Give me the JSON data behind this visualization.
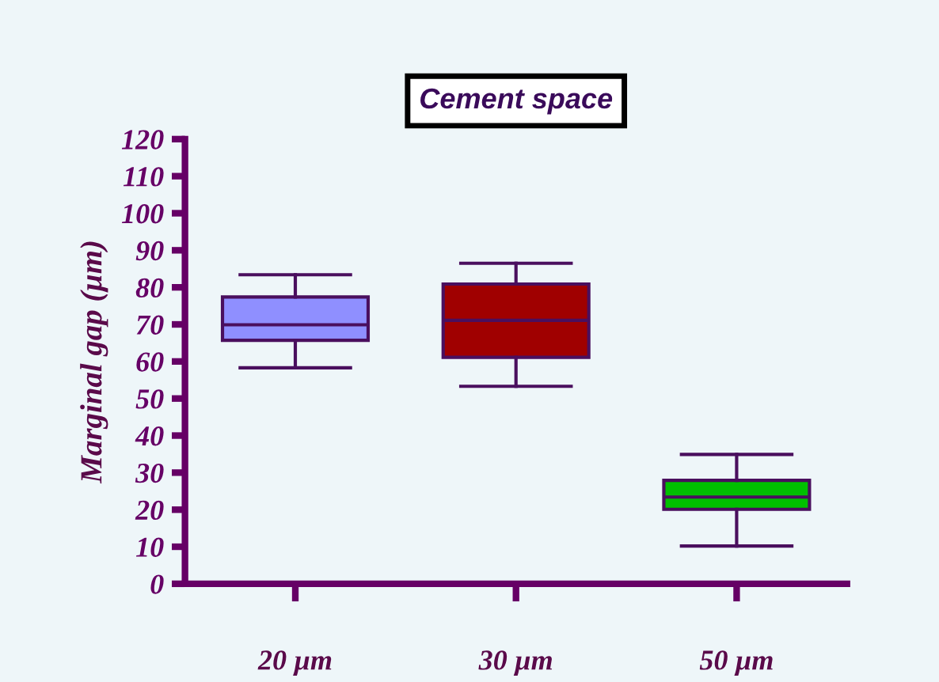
{
  "chart_data": {
    "type": "box",
    "title": "Cement space",
    "ylabel": "Marginal gap (µm)",
    "categories": [
      "20 µm",
      "30 µm",
      "50 µm"
    ],
    "colors": [
      "#8f8fff",
      "#a00000",
      "#00c000"
    ],
    "boxes": [
      {
        "low": 58.3,
        "q1": 65.7,
        "median": 69.9,
        "q3": 77.4,
        "high": 83.4
      },
      {
        "low": 53.3,
        "q1": 61.1,
        "median": 71.1,
        "q3": 80.9,
        "high": 86.5
      },
      {
        "low": 10.2,
        "q1": 20.1,
        "median": 23.4,
        "q3": 27.9,
        "high": 34.9
      }
    ],
    "ylim": [
      0,
      120
    ],
    "yticks": [
      0,
      10,
      20,
      30,
      40,
      50,
      60,
      70,
      80,
      90,
      100,
      110,
      120
    ],
    "grid": false,
    "legend": false
  }
}
